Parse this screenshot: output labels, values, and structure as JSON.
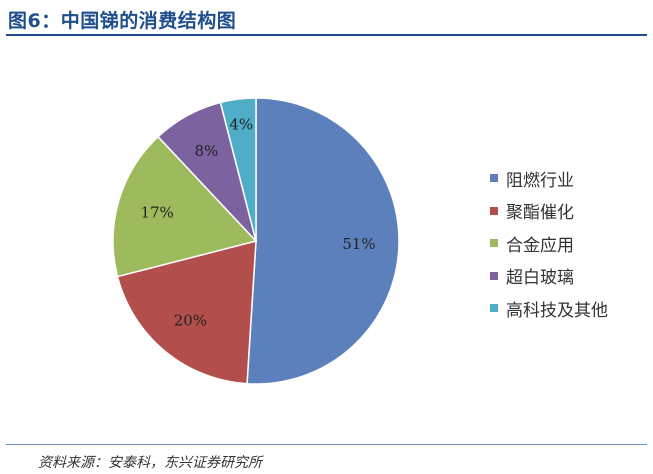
{
  "title": "图6：中国锑的消费结构图",
  "source": "资料来源：安泰科，东兴证券研究所",
  "chart_data": {
    "type": "pie",
    "categories": [
      "阻燃行业",
      "聚酯催化",
      "合金应用",
      "超白玻璃",
      "高科技及其他"
    ],
    "values": [
      51,
      20,
      17,
      8,
      4
    ],
    "data_labels": [
      "51%",
      "20%",
      "17%",
      "8%",
      "4%"
    ],
    "colors": [
      "#5b80bb",
      "#b24f4c",
      "#9dbb5c",
      "#7d62a0",
      "#4fadc8"
    ],
    "legend_position": "right",
    "start_angle": "12 o'clock",
    "direction": "clockwise"
  }
}
